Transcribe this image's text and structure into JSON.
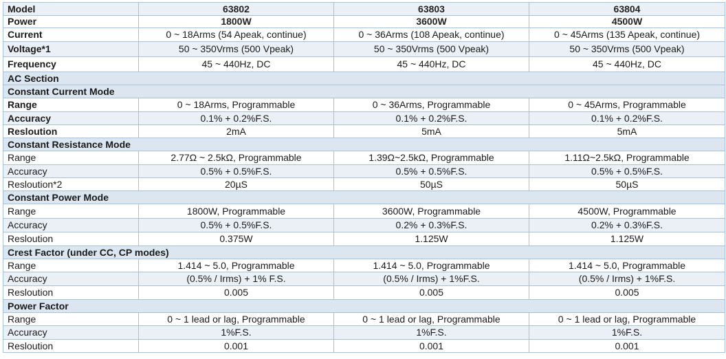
{
  "header": {
    "model": {
      "label": "Model",
      "values": [
        "63802",
        "63803",
        "63804"
      ]
    },
    "power": {
      "label": "Power",
      "values": [
        "1800W",
        "3600W",
        "4500W"
      ]
    },
    "current": {
      "label": "Current",
      "values": [
        "0 ~ 18Arms (54 Apeak, continue)",
        "0 ~ 36Arms (108 Apeak, continue)",
        "0 ~ 45Arms (135 Apeak, continue)"
      ]
    },
    "voltage": {
      "label": "Voltage*1",
      "values": [
        "50 ~ 350Vrms (500 Vpeak)",
        "50 ~ 350Vrms (500 Vpeak)",
        "50 ~ 350Vrms (500 Vpeak)"
      ]
    },
    "frequency": {
      "label": "Frequency",
      "values": [
        "45 ~ 440Hz, DC",
        "45 ~ 440Hz, DC",
        "45 ~ 440Hz, DC"
      ]
    }
  },
  "ac_section": {
    "label": "AC Section"
  },
  "cc_mode": {
    "title": "Constant Current Mode",
    "range": {
      "label": "Range",
      "values": [
        "0 ~ 18Arms, Programmable",
        "0 ~ 36Arms, Programmable",
        "0 ~ 45Arms, Programmable"
      ]
    },
    "accuracy": {
      "label": "Accuracy",
      "values": [
        "0.1% + 0.2%F.S.",
        "0.1% + 0.2%F.S.",
        "0.1% + 0.2%F.S."
      ]
    },
    "resolution": {
      "label": "Resloution",
      "values": [
        "2mA",
        "5mA",
        "5mA"
      ]
    }
  },
  "cr_mode": {
    "title": "Constant Resistance Mode",
    "range": {
      "label": "Range",
      "values": [
        "2.77Ω ~ 2.5kΩ, Programmable",
        "1.39Ω~2.5kΩ, Programmable",
        "1.11Ω~2.5kΩ, Programmable"
      ]
    },
    "accuracy": {
      "label": "Accuracy",
      "values": [
        "0.5% + 0.5%F.S.",
        "0.5% + 0.5%F.S.",
        "0.5% + 0.5%F.S."
      ]
    },
    "resolution": {
      "label": "Resloution*2",
      "values": [
        "20µS",
        "50µS",
        "50µS"
      ]
    }
  },
  "cp_mode": {
    "title": "Constant Power Mode",
    "range": {
      "label": "Range",
      "values": [
        "1800W, Programmable",
        "3600W, Programmable",
        "4500W, Programmable"
      ]
    },
    "accuracy": {
      "label": "Accuracy",
      "values": [
        "0.5% + 0.5%F.S.",
        "0.2% + 0.3%F.S.",
        "0.2% + 0.3%F.S."
      ]
    },
    "resolution": {
      "label": "Resloution",
      "values": [
        "0.375W",
        "1.125W",
        "1.125W"
      ]
    }
  },
  "crest_factor": {
    "title": "Crest Factor (under CC, CP modes)",
    "range": {
      "label": "Range",
      "values": [
        "1.414 ~ 5.0, Programmable",
        "1.414 ~ 5.0, Programmable",
        "1.414 ~ 5.0, Programmable"
      ]
    },
    "accuracy": {
      "label": "Accuracy",
      "values": [
        "(0.5% / Irms) + 1% F.S.",
        "(0.5% / Irms) + 1%F.S.",
        "(0.5% / Irms) + 1%F.S."
      ]
    },
    "resolution": {
      "label": "Resloution",
      "values": [
        "0.005",
        "0.005",
        "0.005"
      ]
    }
  },
  "power_factor": {
    "title": "Power Factor",
    "range": {
      "label": "Range",
      "values": [
        "0 ~ 1 lead or lag, Programmable",
        "0 ~ 1 lead or lag, Programmable",
        "0 ~ 1 lead or lag, Programmable"
      ]
    },
    "accuracy": {
      "label": "Accuracy",
      "values": [
        "1%F.S.",
        "1%F.S.",
        "1%F.S."
      ]
    },
    "resolution": {
      "label": "Resloution",
      "values": [
        "0.001",
        "0.001",
        "0.001"
      ]
    }
  },
  "colors": {
    "border": "#a6c2d8",
    "section_bg": "#dbe6f0",
    "row_shade": "#eaf0f6"
  }
}
